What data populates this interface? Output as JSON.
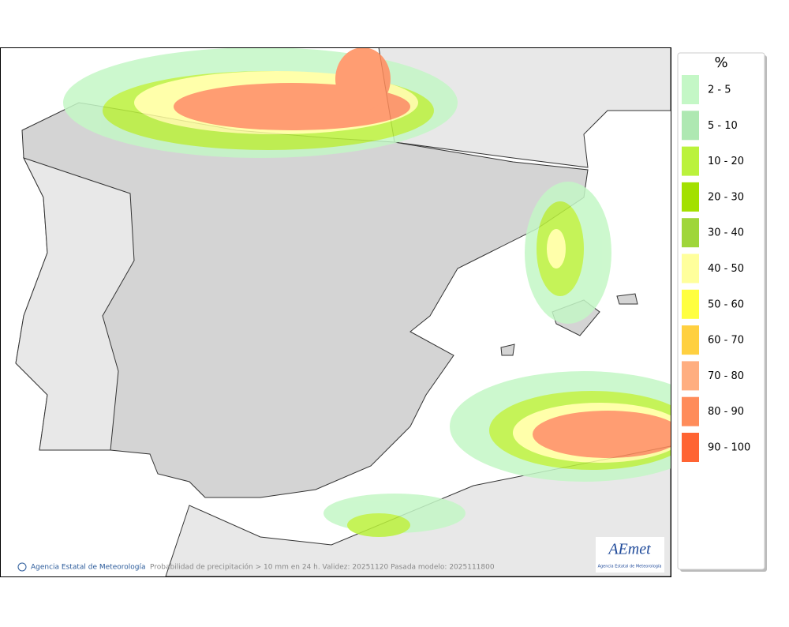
{
  "map": {
    "copyright": "Agencia Estatal de Meteorología",
    "caption": "Probabilidad de precipitación > 10 mm en 24 h. Validez: 20251120 Pasada modelo: 2025111800",
    "logo": "AEmet",
    "logo_subtitle": "Agencia Estatal de Meteorología"
  },
  "legend": {
    "title": "%",
    "items": [
      {
        "label": "2 - 5",
        "color": "#c4f7c6"
      },
      {
        "label": "5 - 10",
        "color": "#aee8b2"
      },
      {
        "label": "10 - 20",
        "color": "#bbf23c"
      },
      {
        "label": "20 - 30",
        "color": "#a3e000"
      },
      {
        "label": "30 - 40",
        "color": "#9fd63a"
      },
      {
        "label": "40 - 50",
        "color": "#ffff9c"
      },
      {
        "label": "50 - 60",
        "color": "#ffff40"
      },
      {
        "label": "60 - 70",
        "color": "#ffd040"
      },
      {
        "label": "70 - 80",
        "color": "#ffae80"
      },
      {
        "label": "80 - 90",
        "color": "#ff8c5a"
      },
      {
        "label": "90 - 100",
        "color": "#ff6433"
      }
    ]
  }
}
